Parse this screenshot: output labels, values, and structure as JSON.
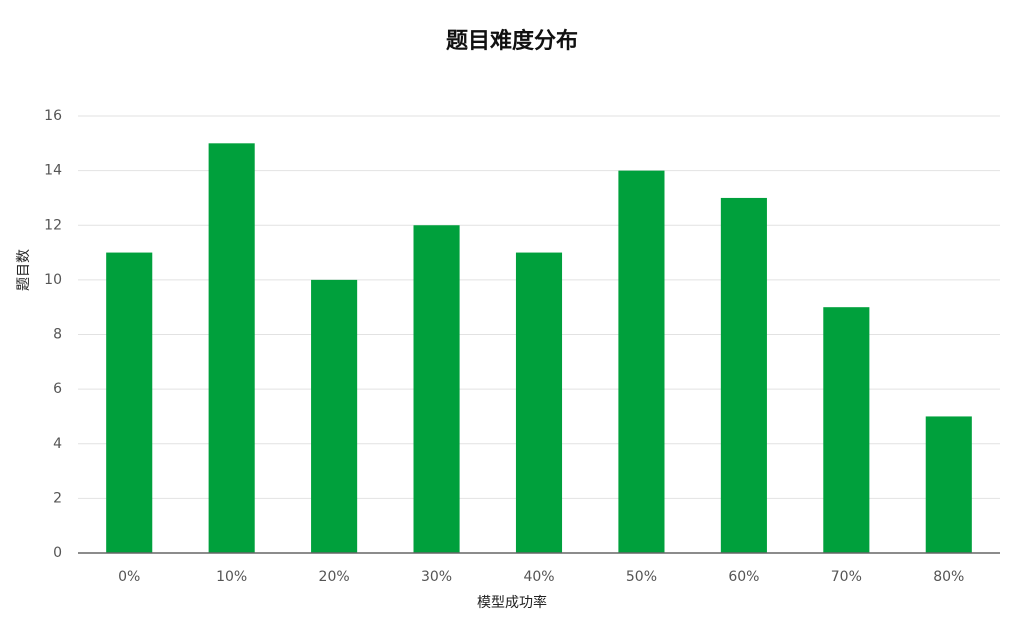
{
  "chart_data": {
    "type": "bar",
    "title": "题目难度分布",
    "x_label": "模型成功率",
    "y_label": "题目数",
    "categories": [
      "0%",
      "10%",
      "20%",
      "30%",
      "40%",
      "50%",
      "60%",
      "70%",
      "80%"
    ],
    "values": [
      11,
      15,
      10,
      12,
      11,
      14,
      13,
      9,
      5
    ],
    "color": "#00a03c",
    "ylim": [
      0,
      16
    ],
    "yticks": [
      0,
      2,
      4,
      6,
      8,
      10,
      12,
      14,
      16
    ],
    "grid": true
  }
}
